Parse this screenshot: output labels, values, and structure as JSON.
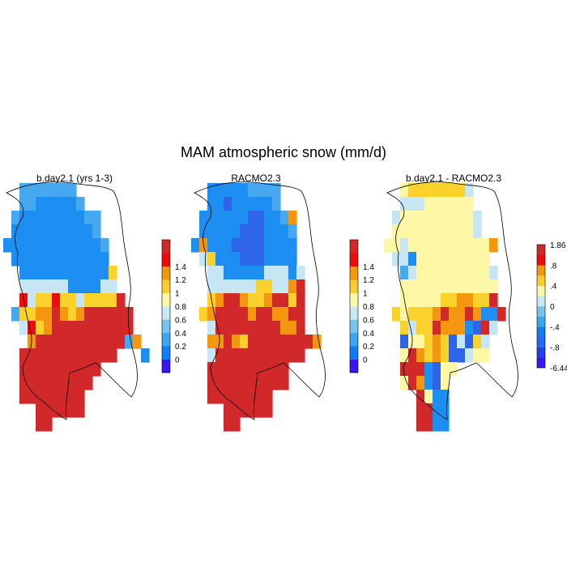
{
  "title": "MAM atmospheric snow (mm/d)",
  "panels": [
    {
      "id": "bday",
      "title": "b.day2.1 (yrs 1-3)",
      "colorbar": {
        "colors": [
          "#3a16f2",
          "#0f7ef5",
          "#3aa6ef",
          "#75c3ee",
          "#c6e9f2",
          "#fdf8a8",
          "#fbcb32",
          "#f39610",
          "#ed0b0b",
          "#d12929"
        ],
        "labels": [
          "0",
          "0.2",
          "0.4",
          "0.6",
          "0.8",
          "1",
          "1.2",
          "1.4"
        ]
      },
      "grid": [
        "..LLLLLLL.........",
        "..LLBBBBBL........",
        ".LBBBBBBBBLL......",
        ".BBBBBBBBBBL......",
        "BBBBBBBBBBBBL.....",
        ".BBBBBBBBBBBB.....",
        "..BBBBBBBBBBBY....",
        "..CCCCCCBBBBCC....",
        "..ICYYIYYCYYYYR...",
        ".LYYOOROYORRRRRR..",
        "..CIYORRRRRRRRRR..",
        "...ORRRRRRRRRRRLO.",
        "..RRRRRRRRRRRR...B",
        "..RRRRRRRRRR......",
        "..RRRRRRRRR.......",
        "..RRRRRRRR........",
        "....RRRRRR........",
        "....RR............"
      ]
    },
    {
      "id": "racmo",
      "title": "RACMO2.3",
      "colorbar": {
        "colors": [
          "#3a16f2",
          "#0f7ef5",
          "#3aa6ef",
          "#75c3ee",
          "#c6e9f2",
          "#fdf8a8",
          "#fbcb32",
          "#f39610",
          "#ed0b0b",
          "#d12929"
        ],
        "labels": [
          "0",
          "0.2",
          "0.4",
          "0.6",
          "0.8",
          "1",
          "1.2",
          "1.4"
        ]
      },
      "grid": [
        "..BBBBBLLLL.......",
        "..BBKBBBBBL.......",
        ".BBBBBBKKBBLO.....",
        ".BBBBBKKKBBBL.....",
        "BOBBBKKKKBBBB.....",
        ".CYBBBKKKBBBB.....",
        "..CCBBBBBCCCBC....",
        "..CCCCCCYYCCOR....",
        "..YORROYYORRYR....",
        ".YORRRRORROORR....",
        "..CRRRRRRRROOR....",
        "..OOROYRRRRRRRRO..",
        "..CRRRRRRRRRRR....",
        "..RRRRRRRRRR......",
        "..RRRRRRRRRR......",
        "..RRRRRRRR........",
        "....RRRRRR........",
        "....RR............"
      ]
    },
    {
      "id": "diff",
      "title": "b.day2.1 - RACMO2.3",
      "colorbar": {
        "colors": [
          "#3a16f2",
          "#2440ec",
          "#2468f3",
          "#0f7ef5",
          "#3aa6ef",
          "#75c3ee",
          "#c6e9f2",
          "#fdf8a8",
          "#fbcb32",
          "#f39610",
          "#ed0b0b",
          "#d12929"
        ],
        "labels": [
          "1.86",
          ".8",
          ".4",
          "0",
          "-.4",
          "-.8",
          "-6.44"
        ]
      },
      "grid": [
        "..PYYYYYYYC.......",
        "..CCCPPPPPP.......",
        ".CPPPPPPPPPC......",
        ".PPPPPPPPPPC......",
        "PPCPPPPPPPPPPO....",
        ".CCBPPPPPPPPP.....",
        "..LCPPPPPPPPPC....",
        "..PPPPPPPPPPPP....",
        "..PPPPPYYOOYYR....",
        ".YPYYYOROOROBBR...",
        "..YCYYROOOBKRC....",
        "..KPPYOYKCKYC.....",
        "..PROYOYKKCPP.....",
        "..RRRBKPP.........",
        "..PROBKP..........",
        "....RPBB..........",
        "....RRBB..........",
        "....RRBB.........."
      ]
    }
  ]
}
